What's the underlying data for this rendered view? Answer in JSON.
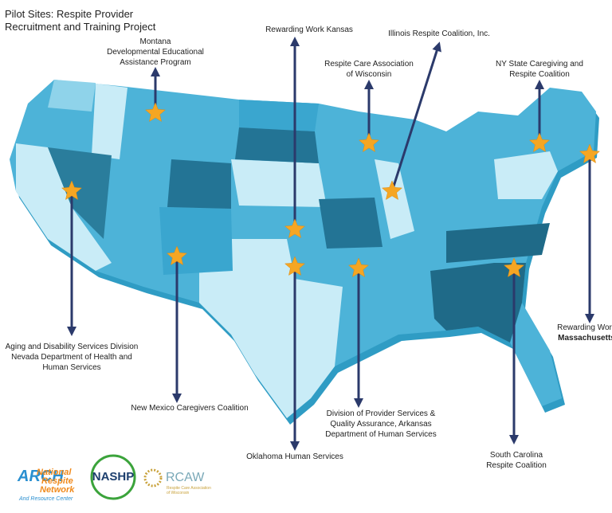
{
  "title": [
    "Pilot Sites: Respite Provider",
    "Recruitment and Training Project"
  ],
  "sites": [
    {
      "label": [
        "Montana",
        "Developmental Educational",
        "Assistance Program"
      ]
    },
    {
      "label": [
        "Rewarding Work Kansas"
      ]
    },
    {
      "label": [
        "Illinois Respite Coalition, Inc."
      ]
    },
    {
      "label": [
        "Respite Care Association",
        "of Wisconsin"
      ]
    },
    {
      "label": [
        "NY State Caregiving and",
        "Respite Coalition"
      ]
    },
    {
      "label": [
        "Aging and Disability Services Division",
        "Nevada Department of Health and",
        "Human Services"
      ]
    },
    {
      "label": [
        "New Mexico Caregivers Coalition"
      ]
    },
    {
      "label": [
        "Oklahoma Human Services"
      ]
    },
    {
      "label": [
        "Division of Provider Services &",
        "Quality Assurance, Arkansas",
        "Department of Human Services"
      ]
    },
    {
      "label": [
        "South Carolina",
        "Respite Coalition"
      ]
    },
    {
      "label": [
        "Rewarding Work",
        "Massachusetts"
      ]
    }
  ],
  "logos": {
    "arch": "ARCH",
    "arch_name": [
      "National",
      "Respite",
      "Network"
    ],
    "arch_sub": "And Resource Center",
    "nashp": "NASHP",
    "rcaw": "RCAW",
    "rcaw_sub": [
      "Respite Care Association",
      "of Wisconsin"
    ]
  }
}
